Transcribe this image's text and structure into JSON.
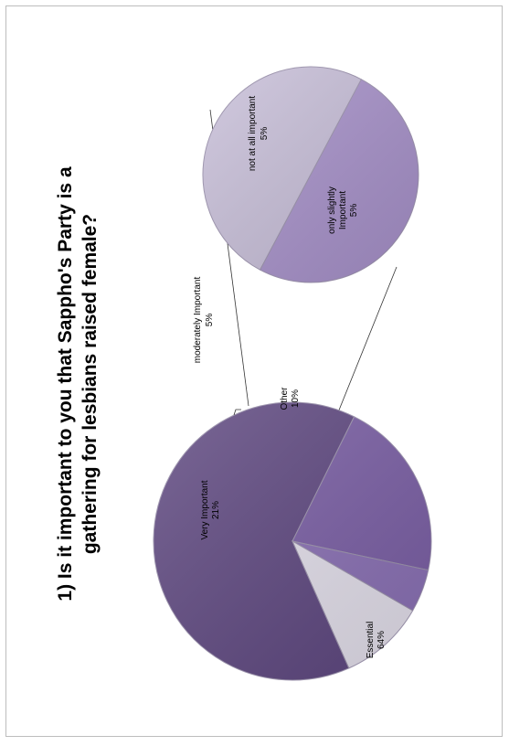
{
  "chart_data": {
    "type": "pie",
    "title_lines": [
      "1)  Is it important to you that Sappho's Party is a",
      "gathering for lesbians raised female?"
    ],
    "main_pie": {
      "slices": [
        {
          "label": "Essential",
          "value_label": "64%",
          "value": 64,
          "color": "#5e4780"
        },
        {
          "label": "Very Important",
          "value_label": "21%",
          "value": 21,
          "color": "#7a5ea5"
        },
        {
          "label": "moderately Important",
          "value_label": "5%",
          "value": 5,
          "color": "#8a70b5"
        },
        {
          "label": "Other",
          "value_label": "10%",
          "value": 10,
          "color": "#e4e0ec"
        }
      ]
    },
    "secondary_pie": {
      "parent": "Other",
      "slices": [
        {
          "label": "not at all important",
          "value_label": "5%",
          "value": 5,
          "color": "#c8bfd9"
        },
        {
          "label": "only slightly Important",
          "value_label": "5%",
          "value": 5,
          "color": "#a892cb"
        }
      ]
    }
  }
}
